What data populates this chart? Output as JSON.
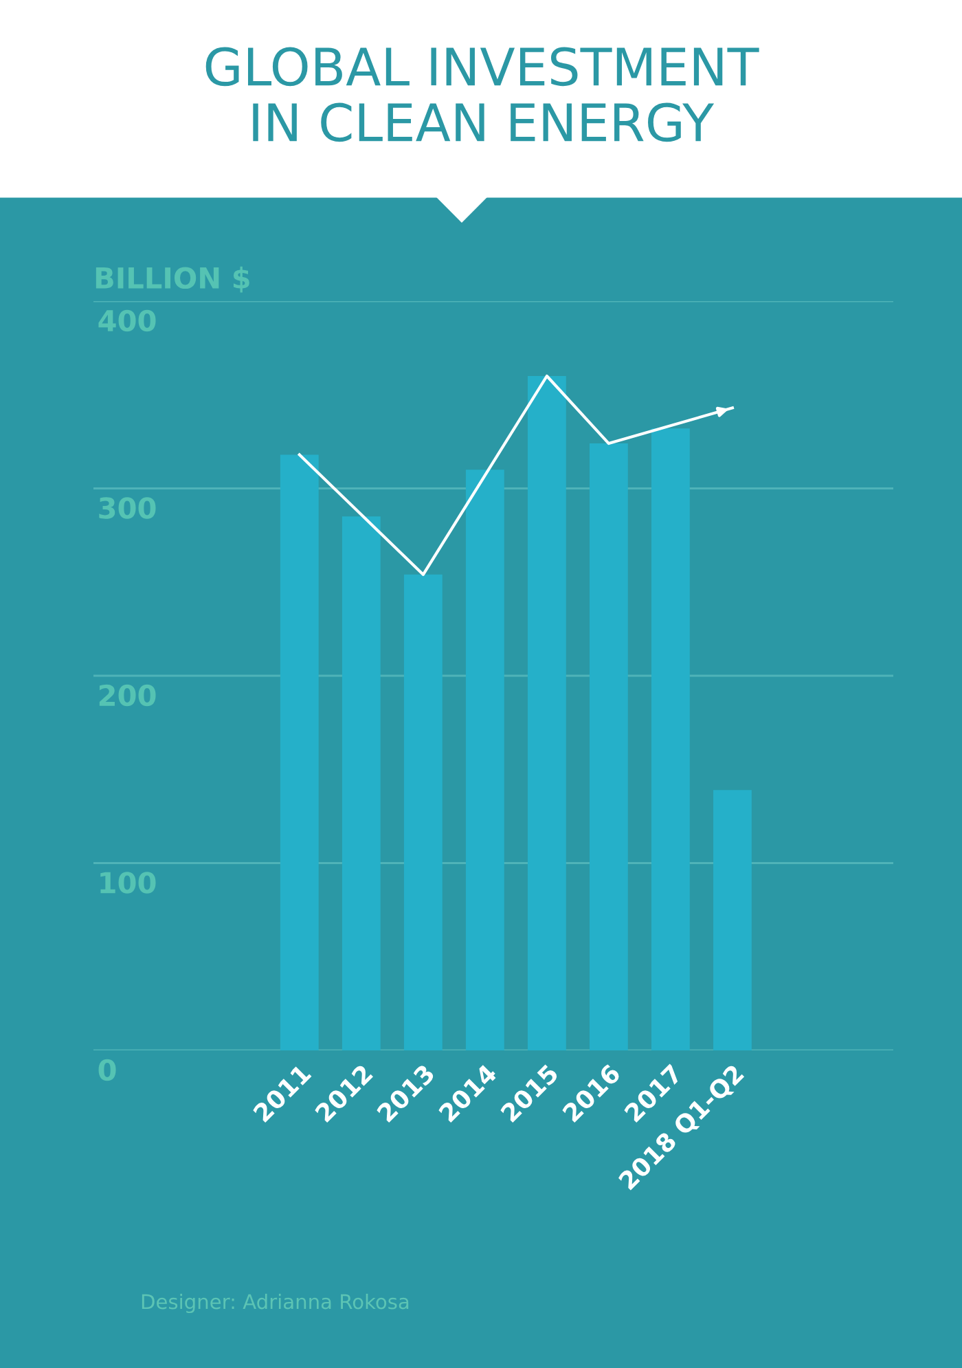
{
  "chart_data": {
    "type": "bar",
    "title": "GLOBAL INVESTMENT\nIN CLEAN ENERGY",
    "ylabel": "BILLION $",
    "categories": [
      "2011",
      "2012",
      "2013",
      "2014",
      "2015",
      "2016",
      "2017",
      "2018 Q1-Q2"
    ],
    "series": [
      {
        "color": "#25b0c9",
        "values": [
          318,
          285,
          254,
          310,
          360,
          324,
          332,
          139
        ]
      },
      {
        "type": "line",
        "color": "#ffffff",
        "values": [
          318,
          null,
          254,
          null,
          360,
          324,
          null,
          343
        ]
      }
    ],
    "ylim": [
      0,
      400
    ],
    "yticks": [
      0,
      100,
      200,
      300,
      400
    ],
    "grid": "y",
    "legend": false,
    "marker": "none",
    "annotations": [
      "Designer: Adrianna Rokosa"
    ]
  }
}
